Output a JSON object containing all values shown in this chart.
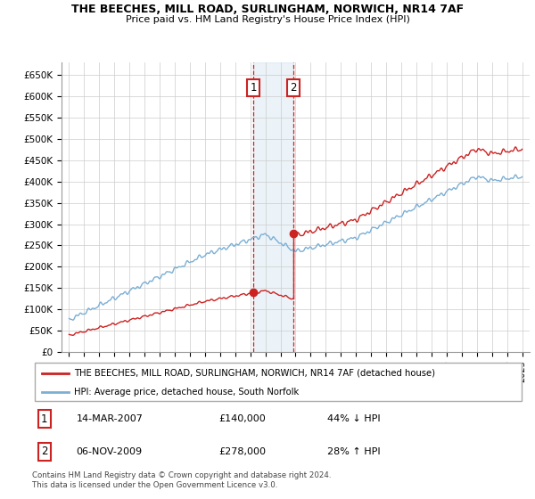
{
  "title1": "THE BEECHES, MILL ROAD, SURLINGHAM, NORWICH, NR14 7AF",
  "title2": "Price paid vs. HM Land Registry's House Price Index (HPI)",
  "ylabel_ticks": [
    "£0",
    "£50K",
    "£100K",
    "£150K",
    "£200K",
    "£250K",
    "£300K",
    "£350K",
    "£400K",
    "£450K",
    "£500K",
    "£550K",
    "£600K",
    "£650K"
  ],
  "ytick_values": [
    0,
    50000,
    100000,
    150000,
    200000,
    250000,
    300000,
    350000,
    400000,
    450000,
    500000,
    550000,
    600000,
    650000
  ],
  "year_start": 1995,
  "year_end": 2025,
  "sale1_year": 2007.2,
  "sale1_price": 140000,
  "sale2_year": 2009.85,
  "sale2_price": 278000,
  "legend_line1": "THE BEECHES, MILL ROAD, SURLINGHAM, NORWICH, NR14 7AF (detached house)",
  "legend_line2": "HPI: Average price, detached house, South Norfolk",
  "ann1_num": "1",
  "ann1_date": "14-MAR-2007",
  "ann1_price": "£140,000",
  "ann1_pct": "44% ↓ HPI",
  "ann2_num": "2",
  "ann2_date": "06-NOV-2009",
  "ann2_price": "£278,000",
  "ann2_pct": "28% ↑ HPI",
  "footer": "Contains HM Land Registry data © Crown copyright and database right 2024.\nThis data is licensed under the Open Government Licence v3.0.",
  "hpi_color": "#7bafd4",
  "price_color": "#cc2222",
  "bg_color": "#ffffff",
  "grid_color": "#cccccc",
  "ylim_top": 680000,
  "xlim_left": 1994.5,
  "xlim_right": 2025.5
}
